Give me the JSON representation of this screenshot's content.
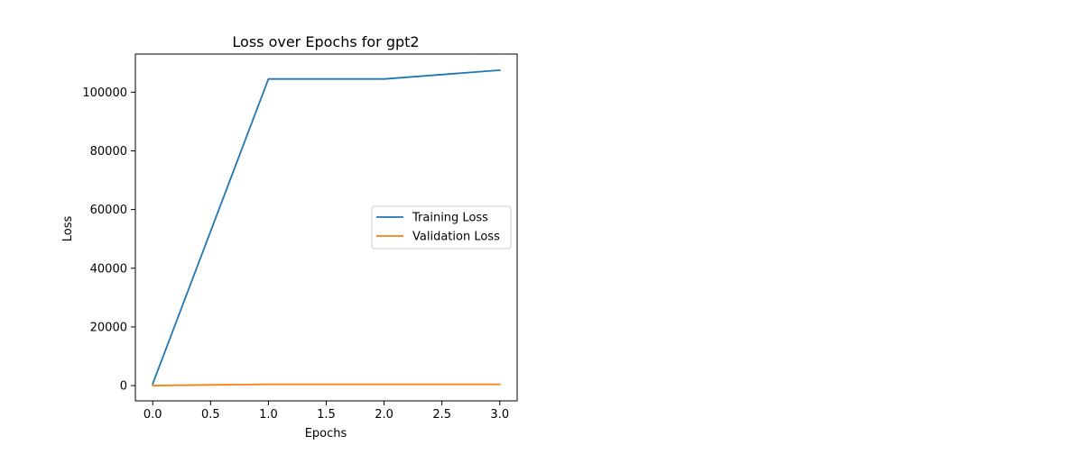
{
  "chart_data": {
    "type": "line",
    "title": "Loss over Epochs for gpt2",
    "xlabel": "Epochs",
    "ylabel": "Loss",
    "xlim": [
      -0.15,
      3.15
    ],
    "ylim": [
      -5200,
      113000
    ],
    "x": [
      0,
      1,
      2,
      3
    ],
    "xticks": [
      0.0,
      0.5,
      1.0,
      1.5,
      2.0,
      2.5,
      3.0
    ],
    "xtick_labels": [
      "0.0",
      "0.5",
      "1.0",
      "1.5",
      "2.0",
      "2.5",
      "3.0"
    ],
    "yticks": [
      0,
      20000,
      40000,
      60000,
      80000,
      100000
    ],
    "ytick_labels": [
      "0",
      "20000",
      "40000",
      "60000",
      "80000",
      "100000"
    ],
    "grid": false,
    "legend_position": "center-right",
    "series": [
      {
        "name": "Training Loss",
        "color": "#1f77b4",
        "values": [
          600,
          104500,
          104500,
          107500
        ]
      },
      {
        "name": "Validation Loss",
        "color": "#ff7f0e",
        "values": [
          0,
          450,
          450,
          450
        ]
      }
    ]
  }
}
